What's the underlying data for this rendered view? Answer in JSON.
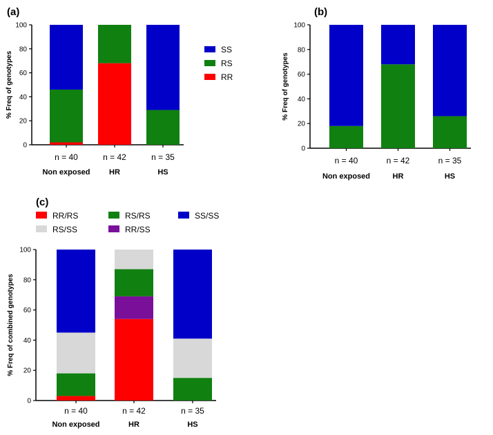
{
  "colors": {
    "SS": "#0000c8",
    "RS": "#108010",
    "RR": "#ff0000",
    "RR_RS": "#ff0000",
    "RS_RS": "#108010",
    "SS_SS": "#0000c8",
    "RS_SS": "#d8d8d8",
    "RR_SS": "#7a109a"
  },
  "chart_data": [
    {
      "panel": "(a)",
      "type": "bar",
      "stacked": true,
      "ylabel": "% Freq of genotypes",
      "ylim": [
        0,
        100
      ],
      "yticks": [
        0,
        20,
        40,
        60,
        80,
        100
      ],
      "categories": [
        "Non exposed",
        "HR",
        "HS"
      ],
      "sample_sizes": [
        "n = 40",
        "n = 42",
        "n = 35"
      ],
      "series": [
        {
          "name": "RR",
          "color_key": "RR",
          "values": [
            2,
            68,
            0
          ]
        },
        {
          "name": "RS",
          "color_key": "RS",
          "values": [
            44,
            32,
            29
          ]
        },
        {
          "name": "SS",
          "color_key": "SS",
          "values": [
            54,
            0,
            71
          ]
        }
      ],
      "legend": [
        "SS",
        "RS",
        "RR"
      ],
      "legend_position": "right"
    },
    {
      "panel": "(b)",
      "type": "bar",
      "stacked": true,
      "ylabel": "% Freq of genotypes",
      "ylim": [
        0,
        100
      ],
      "yticks": [
        0,
        20,
        40,
        60,
        80,
        100
      ],
      "categories": [
        "Non exposed",
        "HR",
        "HS"
      ],
      "sample_sizes": [
        "n = 40",
        "n = 42",
        "n = 35"
      ],
      "series": [
        {
          "name": "RS",
          "color_key": "RS",
          "values": [
            18,
            68,
            26
          ]
        },
        {
          "name": "SS",
          "color_key": "SS",
          "values": [
            82,
            32,
            74
          ]
        }
      ]
    },
    {
      "panel": "(c)",
      "type": "bar",
      "stacked": true,
      "ylabel": "% Freq of combined genotypes",
      "ylim": [
        0,
        100
      ],
      "yticks": [
        0,
        20,
        40,
        60,
        80,
        100
      ],
      "categories": [
        "Non exposed",
        "HR",
        "HS"
      ],
      "sample_sizes": [
        "n = 40",
        "n = 42",
        "n = 35"
      ],
      "series": [
        {
          "name": "RR/RS",
          "color_key": "RR_RS",
          "values": [
            3,
            54,
            0
          ]
        },
        {
          "name": "RR/SS",
          "color_key": "RR_SS",
          "values": [
            0,
            15,
            0
          ]
        },
        {
          "name": "RS/RS",
          "color_key": "RS_RS",
          "values": [
            15,
            18,
            15
          ]
        },
        {
          "name": "RS/SS",
          "color_key": "RS_SS",
          "values": [
            27,
            13,
            26
          ]
        },
        {
          "name": "SS/SS",
          "color_key": "SS_SS",
          "values": [
            55,
            0,
            59
          ]
        }
      ],
      "legend": [
        "RR/RS",
        "RS/RS",
        "SS/SS",
        "RS/SS",
        "RR/SS"
      ],
      "legend_position": "top"
    }
  ]
}
